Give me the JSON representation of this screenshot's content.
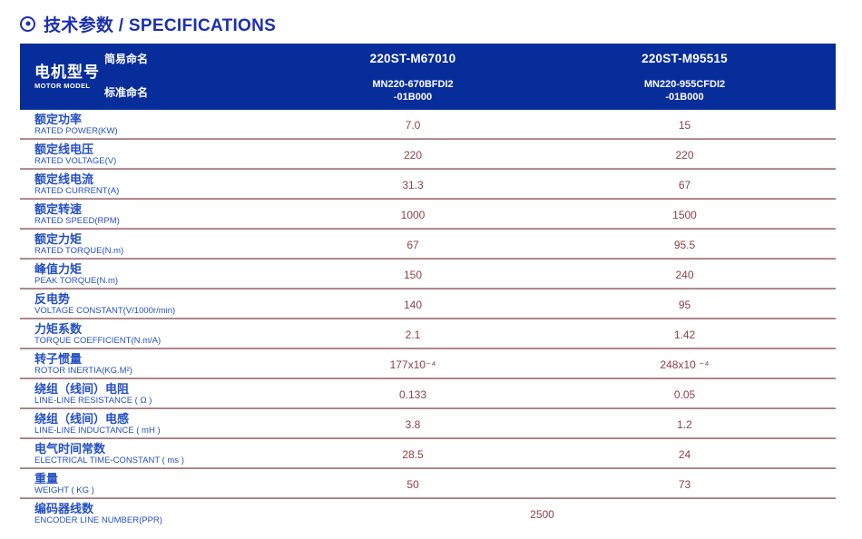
{
  "page": {
    "title_text": "技术参数 / SPECIFICATIONS"
  },
  "table": {
    "header": {
      "motor_model_zh": "电机型号",
      "motor_model_en": "MOTOR MODEL",
      "simple_name_label": "简易命名",
      "standard_name_label": "标准命名",
      "columns": [
        {
          "simple_name": "220ST-M67010",
          "standard_name_line1": "MN220-670BFDI2",
          "standard_name_line2": "-01B000"
        },
        {
          "simple_name": "220ST-M95515",
          "standard_name_line1": "MN220-955CFDI2",
          "standard_name_line2": "-01B000"
        }
      ]
    },
    "rows": [
      {
        "zh": "额定功率",
        "en": "RATED POWER(KW)",
        "v1": "7.0",
        "v2": "15"
      },
      {
        "zh": "额定线电压",
        "en": "RATED VOLTAGE(V)",
        "v1": "220",
        "v2": "220"
      },
      {
        "zh": "额定线电流",
        "en": "RATED CURRENT(A)",
        "v1": "31.3",
        "v2": "67"
      },
      {
        "zh": "额定转速",
        "en": "RATED SPEED(RPM)",
        "v1": "1000",
        "v2": "1500"
      },
      {
        "zh": "额定力矩",
        "en": "RATED TORQUE(N.m)",
        "v1": "67",
        "v2": "95.5"
      },
      {
        "zh": "峰值力矩",
        "en": "PEAK TORQUE(N.m)",
        "v1": "150",
        "v2": "240"
      },
      {
        "zh": "反电势",
        "en": "VOLTAGE CONSTANT(V/1000r/min)",
        "v1": "140",
        "v2": "95"
      },
      {
        "zh": "力矩系数",
        "en": "TORQUE COEFFICIENT(N.m/A)",
        "v1": "2.1",
        "v2": "1.42"
      },
      {
        "zh": "转子惯量",
        "en": "ROTOR INERTIA(KG.M²)",
        "v1": "177x10⁻⁴",
        "v2": "248x10 ⁻⁴"
      },
      {
        "zh": "绕组（线间）电阻",
        "en": "LINE-LINE RESISTANCE ( Ω )",
        "v1": "0.133",
        "v2": "0.05"
      },
      {
        "zh": "绕组（线间）电感",
        "en": "LINE-LINE INDUCTANCE ( mH )",
        "v1": "3.8",
        "v2": "1.2"
      },
      {
        "zh": "电气时间常数",
        "en": "ELECTRICAL TIME-CONSTANT ( ms )",
        "v1": "28.5",
        "v2": "24"
      },
      {
        "zh": "重量",
        "en": "WEIGHT ( KG )",
        "v1": "50",
        "v2": "73"
      },
      {
        "zh": "编码器线数",
        "en": "ENCODER LINE NUMBER(PPR)",
        "span": "2500"
      }
    ],
    "colors": {
      "title_blue": "#1c2fb0",
      "header_bg": "#072d9b",
      "label_blue": "#2450c4",
      "value_red": "#904045",
      "divider_mauve": "#a9868a"
    }
  }
}
